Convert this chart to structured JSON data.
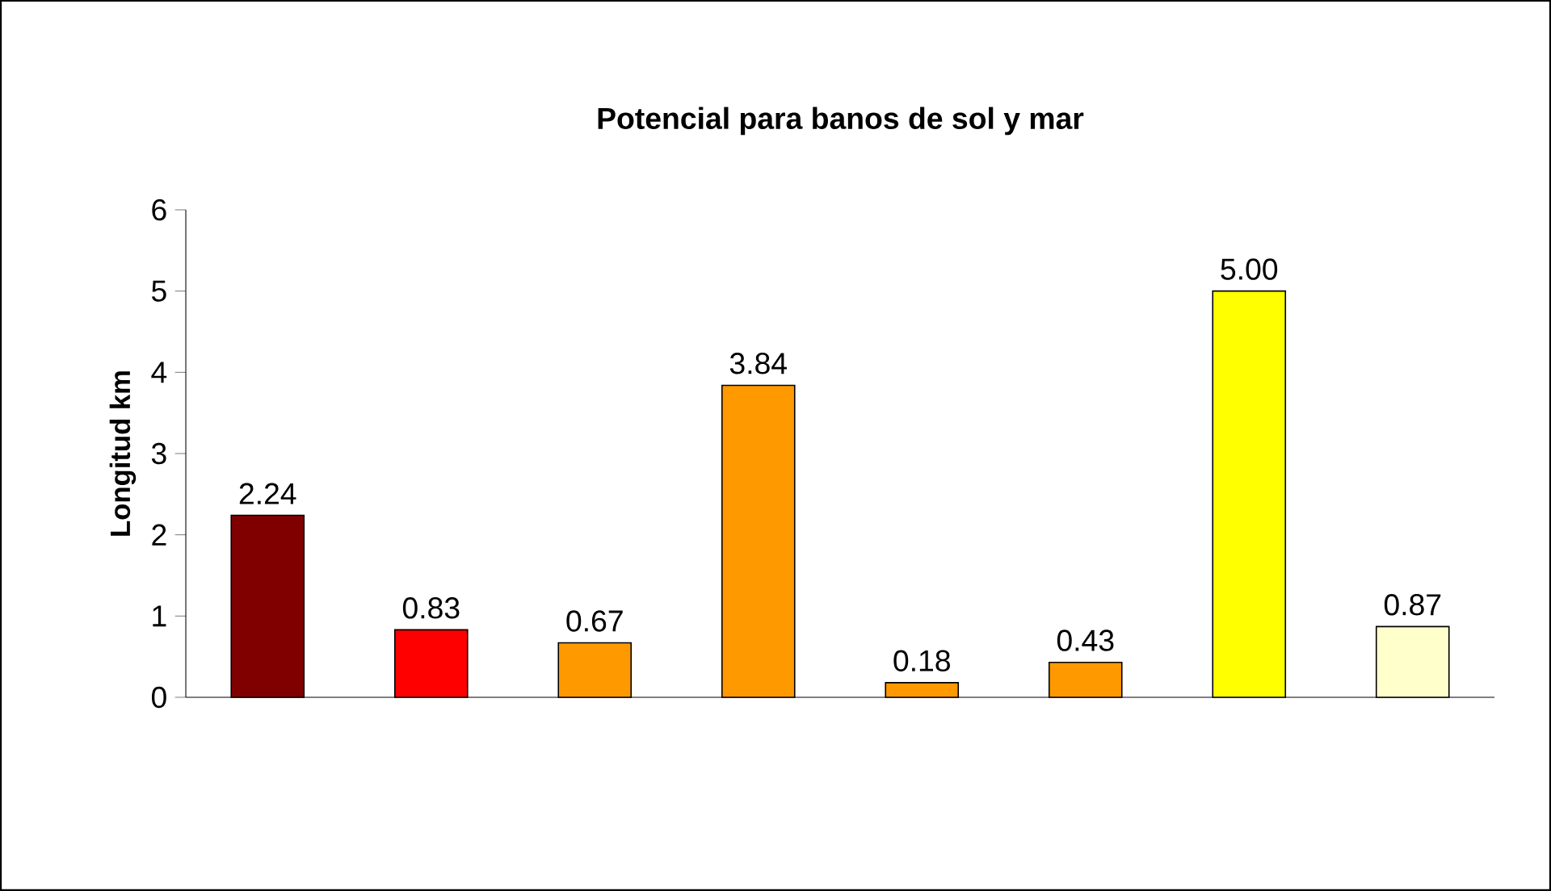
{
  "chart_data": {
    "type": "bar",
    "title": "Potencial para banos de sol y mar",
    "ylabel": "Longitud km",
    "categories": [
      null,
      null,
      null,
      null,
      null,
      null,
      null,
      null
    ],
    "values": [
      2.24,
      0.83,
      0.67,
      3.84,
      0.18,
      0.43,
      5.0,
      0.87
    ],
    "value_labels": [
      "2.24",
      "0.83",
      "0.67",
      "3.84",
      "0.18",
      "0.43",
      "5.00",
      "0.87"
    ],
    "colors": [
      "#800000",
      "#ff0000",
      "#ff9900",
      "#ff9900",
      "#ff9900",
      "#ff9900",
      "#ffff00",
      "#ffffcc"
    ],
    "ylim": [
      0,
      6
    ],
    "yticks": [
      0,
      1,
      2,
      3,
      4,
      5,
      6
    ]
  }
}
